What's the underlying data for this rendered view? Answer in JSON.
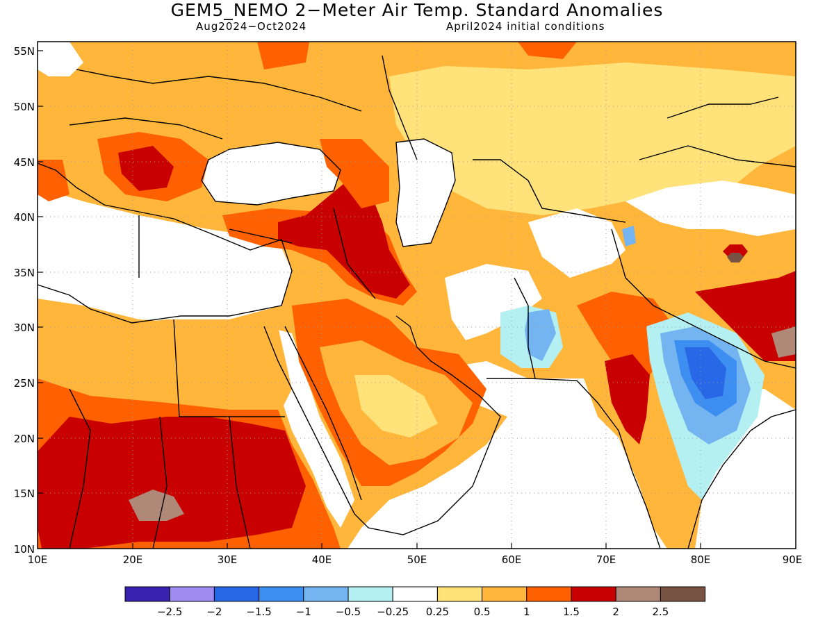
{
  "map": {
    "title": "GEM5_NEMO 2−Meter Air Temp. Standard Anomalies",
    "subtitle_left": "Aug2024−Oct2024",
    "subtitle_right": "April2024 initial conditions",
    "lon_ticks": [
      "10E",
      "20E",
      "30E",
      "40E",
      "50E",
      "60E",
      "70E",
      "80E",
      "90E"
    ],
    "lat_ticks": [
      "55N",
      "50N",
      "45N",
      "40N",
      "35N",
      "30N",
      "25N",
      "20N",
      "15N",
      "10N"
    ]
  },
  "legend": {
    "colors": [
      "#3a22b0",
      "#a08cf2",
      "#2868e6",
      "#3c8ef0",
      "#74b4f0",
      "#b4f0f2",
      "#ffffff",
      "#ffe27a",
      "#ffb63a",
      "#ff6000",
      "#c80000",
      "#b08878",
      "#785242"
    ],
    "labels": [
      "−2.5",
      "−2",
      "−1.5",
      "−1",
      "−0.5",
      "−0.25",
      "0.25",
      "0.5",
      "1",
      "1.5",
      "2",
      "2.5"
    ]
  }
}
